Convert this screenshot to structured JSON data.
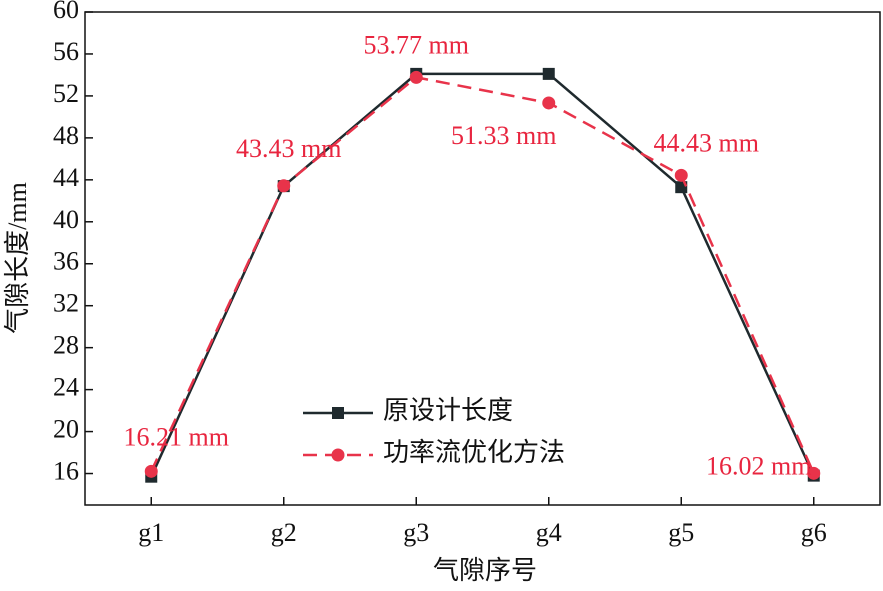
{
  "chart_data": {
    "type": "line",
    "x_label": "气隙序号",
    "y_label": "气隙长度/mm",
    "categories": [
      "g1",
      "g2",
      "g3",
      "g4",
      "g5",
      "g6"
    ],
    "series": [
      {
        "name": "原设计长度",
        "color": "#1f2a2e",
        "marker": "square",
        "dash": false,
        "values": [
          15.7,
          43.4,
          54.1,
          54.1,
          43.3,
          15.8
        ]
      },
      {
        "name": "功率流优化方法",
        "color": "#e8334a",
        "marker": "circle",
        "dash": true,
        "values": [
          16.21,
          43.43,
          53.77,
          51.33,
          44.43,
          16.02
        ],
        "value_labels": [
          "16.21 mm",
          "43.43 mm",
          "53.77 mm",
          "51.33 mm",
          "44.43 mm",
          "16.02 mm"
        ]
      }
    ],
    "ylim": [
      13,
      60
    ],
    "yticks": [
      16,
      20,
      24,
      28,
      32,
      36,
      40,
      44,
      48,
      52,
      56,
      60
    ],
    "legend": "lower-center"
  }
}
